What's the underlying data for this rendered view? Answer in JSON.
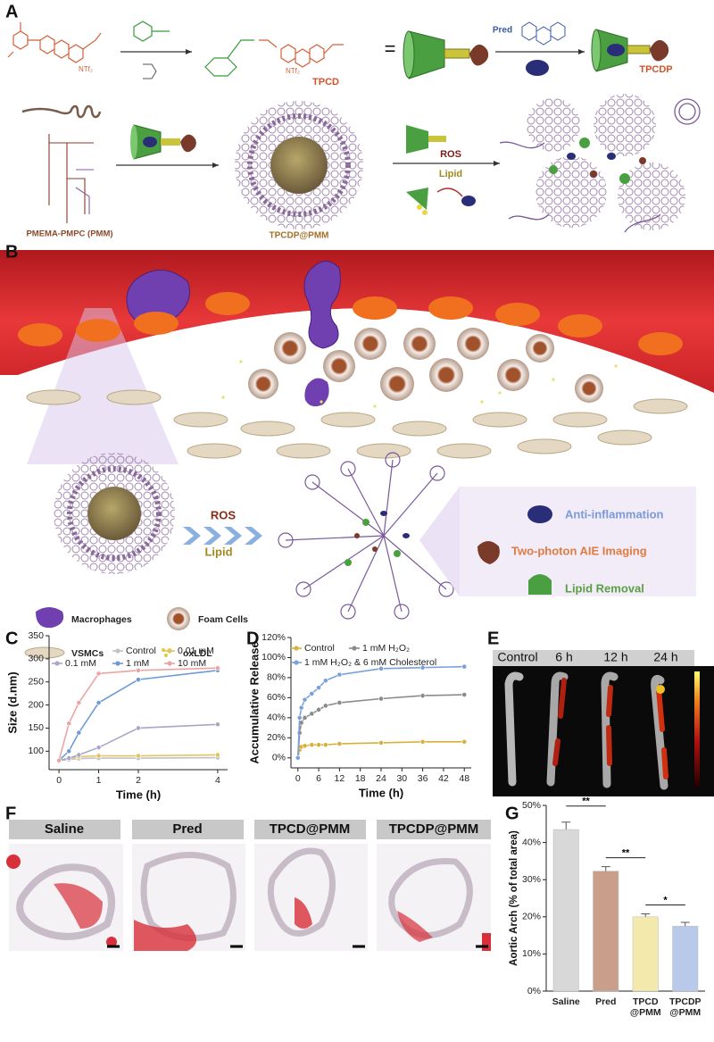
{
  "panel_letters": [
    "A",
    "B",
    "C",
    "D",
    "E",
    "F",
    "G"
  ],
  "panel_a": {
    "counter_ion_1": "NTf₂",
    "counter_ion_2": "NTf₂",
    "product_1": "TPCD",
    "equals": "=",
    "drug": "Pred",
    "product_2": "TPCDP",
    "polymer": "PMEMA-PMPC (PMM)",
    "nanoparticle": "TPCDP@PMM",
    "trigger_1": "ROS",
    "trigger_2": "Lipid"
  },
  "panel_b": {
    "trigger_1": "ROS",
    "trigger_2": "Lipid",
    "effects": [
      "Anti-inflammation",
      "Two-photon AIE Imaging",
      "Lipid Removal"
    ],
    "legend": [
      "Macrophages",
      "Foam Cells",
      "VSMCs",
      "oxLDL"
    ]
  },
  "panel_e": {
    "headers": [
      "Control",
      "6 h",
      "12 h",
      "24 h"
    ]
  },
  "panel_f": {
    "headers": [
      "Saline",
      "Pred",
      "TPCD@PMM",
      "TPCDP@PMM"
    ]
  },
  "chart_data": [
    {
      "type": "line",
      "x_label": "Time (h)",
      "y_label": "Size (d.nm)",
      "xlim": [
        -0.25,
        4.25
      ],
      "xticks": [
        0,
        1,
        2,
        4
      ],
      "ylim": [
        60,
        350
      ],
      "yticks": [
        100,
        150,
        200,
        250,
        300,
        350
      ],
      "x": [
        0,
        0.25,
        0.5,
        1,
        2,
        4
      ],
      "series": [
        {
          "name": "Control",
          "color": "#c4c0c4",
          "values": [
            80,
            82,
            84,
            85,
            85,
            86
          ]
        },
        {
          "name": "0.01 mM",
          "color": "#e2c35e",
          "values": [
            80,
            85,
            88,
            90,
            90,
            92
          ]
        },
        {
          "name": "0.1 mM",
          "color": "#aaa6c6",
          "values": [
            80,
            85,
            92,
            108,
            150,
            158
          ]
        },
        {
          "name": "1 mM",
          "color": "#6c9bd8",
          "values": [
            80,
            100,
            140,
            205,
            255,
            275
          ]
        },
        {
          "name": "10 mM",
          "color": "#eba4a4",
          "values": [
            80,
            160,
            205,
            268,
            275,
            280
          ]
        }
      ]
    },
    {
      "type": "line",
      "x_label": "Time (h)",
      "y_label": "Accumulative Release",
      "xlim": [
        -2,
        50
      ],
      "xticks": [
        0,
        6,
        12,
        18,
        24,
        30,
        36,
        42,
        48
      ],
      "ylim": [
        -10,
        120
      ],
      "yticks": [
        {
          "value": 0,
          "label": "0%"
        },
        {
          "value": 20,
          "label": "20%"
        },
        {
          "value": 40,
          "label": "40%"
        },
        {
          "value": 60,
          "label": "60%"
        },
        {
          "value": 80,
          "label": "80%"
        },
        {
          "value": 100,
          "label": "100%"
        },
        {
          "value": 120,
          "label": "120%"
        }
      ],
      "x": [
        0,
        0.5,
        1,
        2,
        4,
        6,
        8,
        12,
        24,
        36,
        48
      ],
      "series": [
        {
          "name": "Control",
          "color": "#d9b03a",
          "values": [
            0,
            8,
            11,
            12,
            13,
            13,
            13,
            14,
            15,
            16,
            16
          ]
        },
        {
          "name": "1 mM H₂O₂",
          "color": "#8a8a8a",
          "values": [
            0,
            25,
            35,
            40,
            44,
            48,
            52,
            55,
            59,
            62,
            63
          ]
        },
        {
          "name": "1 mM H₂O₂ & 6 mM Cholesterol",
          "color": "#7aa0dc",
          "values": [
            0,
            40,
            50,
            58,
            64,
            70,
            77,
            83,
            89,
            90,
            91
          ]
        }
      ]
    },
    {
      "type": "bar",
      "y_label": "Aortic Arch (% of total area)",
      "categories": [
        "Saline",
        "Pred",
        "TPCD\n@PMM",
        "TPCDP\n@PMM"
      ],
      "values": [
        43.5,
        32.3,
        20,
        17.5
      ],
      "errors": [
        2,
        1.2,
        0.8,
        1
      ],
      "colors": [
        "#d8d8d8",
        "#c99f8c",
        "#f3e9ad",
        "#b9c9ea"
      ],
      "ylim": [
        0,
        50
      ],
      "yticks": [
        {
          "value": 0,
          "label": "0%"
        },
        {
          "value": 10,
          "label": "10%"
        },
        {
          "value": 20,
          "label": "20%"
        },
        {
          "value": 30,
          "label": "30%"
        },
        {
          "value": 40,
          "label": "40%"
        },
        {
          "value": 50,
          "label": "50%"
        }
      ],
      "annotations": [
        "**",
        "**",
        "*"
      ]
    }
  ]
}
